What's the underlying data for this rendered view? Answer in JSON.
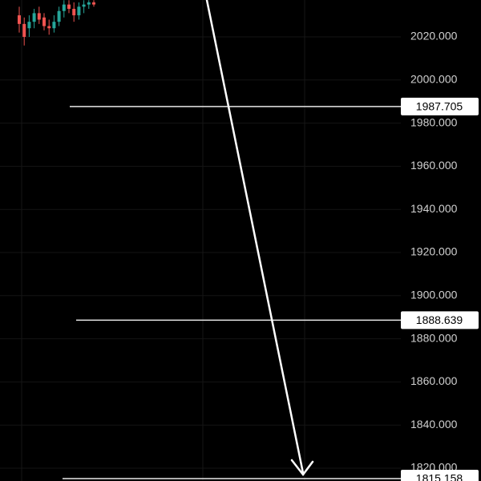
{
  "chart_data": {
    "type": "candlestick",
    "open": [
      2030,
      2026,
      2024,
      2027,
      2031,
      2029,
      2025,
      2024,
      2027,
      2032,
      2035,
      2033,
      2030,
      2034,
      2035,
      2036
    ],
    "high": [
      2034,
      2029,
      2030,
      2033,
      2034,
      2031,
      2028,
      2030,
      2034,
      2037,
      2037,
      2036,
      2036,
      2037,
      2037,
      2037
    ],
    "low": [
      2022,
      2016,
      2020,
      2024,
      2026,
      2023,
      2021,
      2022,
      2025,
      2029,
      2031,
      2027,
      2028,
      2031,
      2033,
      2034
    ],
    "close": [
      2026,
      2020,
      2027,
      2031,
      2028,
      2025,
      2024,
      2027,
      2032,
      2035,
      2033,
      2030,
      2034,
      2035,
      2036,
      2035
    ],
    "up_color": "#26a69a",
    "down_color": "#ef5350",
    "ylim": [
      1814.05,
      2037.1
    ],
    "yticks": [
      {
        "value": 1820,
        "label": "1820.000"
      },
      {
        "value": 1840,
        "label": "1840.000"
      },
      {
        "value": 1860,
        "label": "1860.000"
      },
      {
        "value": 1880,
        "label": "1880.000"
      },
      {
        "value": 1900,
        "label": "1900.000"
      },
      {
        "value": 1920,
        "label": "1920.000"
      },
      {
        "value": 1940,
        "label": "1940.000"
      },
      {
        "value": 1960,
        "label": "1960.000"
      },
      {
        "value": 1980,
        "label": "1980.000"
      },
      {
        "value": 2000,
        "label": "2000.000"
      },
      {
        "value": 2020,
        "label": "2020.000"
      }
    ],
    "levels": [
      1987.705,
      1888.639,
      1815.158
    ],
    "grid": true
  }
}
